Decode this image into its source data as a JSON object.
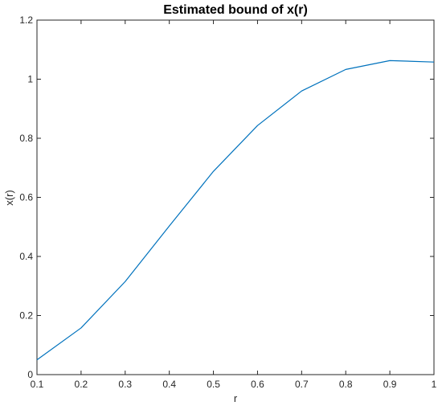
{
  "chart_data": {
    "type": "line",
    "title": "Estimated bound of x(r)",
    "xlabel": "r",
    "ylabel": "x(r)",
    "xlim": [
      0.1,
      1
    ],
    "ylim": [
      0,
      1.2
    ],
    "grid": false,
    "x": [
      0.1,
      0.2,
      0.3,
      0.4,
      0.5,
      0.6,
      0.7,
      0.8,
      0.9,
      1.0
    ],
    "series": [
      {
        "values": [
          0.05,
          0.158,
          0.315,
          0.503,
          0.688,
          0.843,
          0.96,
          1.033,
          1.063,
          1.058
        ],
        "color": "#0072BD"
      }
    ],
    "xticks": [
      "0.1",
      "0.2",
      "0.3",
      "0.4",
      "0.5",
      "0.6",
      "0.7",
      "0.8",
      "0.9",
      "1"
    ],
    "yticks": [
      "0",
      "0.2",
      "0.4",
      "0.6",
      "0.8",
      "1",
      "1.2"
    ],
    "xtick_values": [
      0.1,
      0.2,
      0.3,
      0.4,
      0.5,
      0.6,
      0.7,
      0.8,
      0.9,
      1.0
    ],
    "ytick_values": [
      0,
      0.2,
      0.4,
      0.6,
      0.8,
      1.0,
      1.2
    ]
  }
}
